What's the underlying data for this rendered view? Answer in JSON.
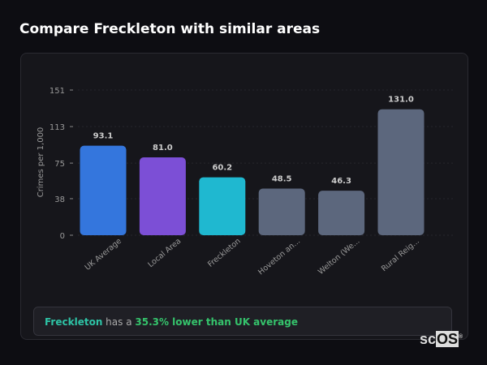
{
  "header": {
    "title": "Compare Freckleton with similar areas"
  },
  "chart_data": {
    "type": "bar",
    "title": "",
    "xlabel": "",
    "ylabel": "Crimes per 1,000",
    "categories": [
      "UK Average",
      "Local Area",
      "Freckleton",
      "Hoveton an...",
      "Welton (We...",
      "Rural Reig..."
    ],
    "values": [
      93.1,
      81.0,
      60.2,
      48.5,
      46.3,
      131.0
    ],
    "value_labels": [
      "93.1",
      "81.0",
      "60.2",
      "48.5",
      "46.3",
      "131.0"
    ],
    "colors": [
      "#3476dd",
      "#7c4fd6",
      "#1fb8d0",
      "#5c677d",
      "#5c677d",
      "#5c677d"
    ],
    "yticks": [
      "0",
      "38",
      "75",
      "113",
      "151"
    ],
    "ylim": [
      0,
      151
    ],
    "grid": true,
    "legend": "none"
  },
  "footer": {
    "area": "Freckleton",
    "mid": " has a ",
    "highlight": "35.3% lower than UK average"
  },
  "logo": {
    "text_a": "sc",
    "text_b": "OS",
    "mark": "®"
  }
}
